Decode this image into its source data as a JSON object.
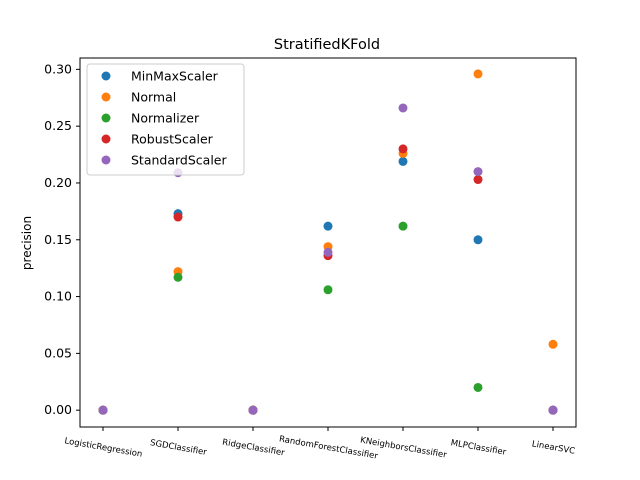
{
  "chart_data": {
    "type": "scatter",
    "title": "StratifiedKFold",
    "xlabel": "",
    "ylabel": "precision",
    "categories": [
      "LogisticRegression",
      "SGDClassifier",
      "RidgeClassifier",
      "RandomForestClassifier",
      "KNeighborsClassifier",
      "MLPClassifier",
      "LinearSVC"
    ],
    "ylim": [
      -0.0148,
      0.31
    ],
    "yticks": [
      0.0,
      0.05,
      0.1,
      0.15,
      0.2,
      0.25,
      0.3
    ],
    "ytick_labels": [
      "0.00",
      "0.05",
      "0.10",
      "0.15",
      "0.20",
      "0.25",
      "0.30"
    ],
    "grid": false,
    "legend_position": "top-left",
    "series": [
      {
        "name": "MinMaxScaler",
        "color": "#1f77b4",
        "values": [
          0.0,
          0.173,
          0.0,
          0.162,
          0.219,
          0.15,
          0.0
        ]
      },
      {
        "name": "Normal",
        "color": "#ff7f0e",
        "values": [
          0.0,
          0.122,
          0.0,
          0.144,
          0.226,
          0.296,
          0.058
        ]
      },
      {
        "name": "Normalizer",
        "color": "#2ca02c",
        "values": [
          0.0,
          0.117,
          0.0,
          0.106,
          0.162,
          0.02,
          0.0
        ]
      },
      {
        "name": "RobustScaler",
        "color": "#d62728",
        "values": [
          0.0,
          0.17,
          0.0,
          0.136,
          0.23,
          0.203,
          0.0
        ]
      },
      {
        "name": "StandardScaler",
        "color": "#9467bd",
        "values": [
          0.0,
          0.209,
          0.0,
          0.139,
          0.266,
          0.21,
          0.0
        ]
      }
    ]
  }
}
